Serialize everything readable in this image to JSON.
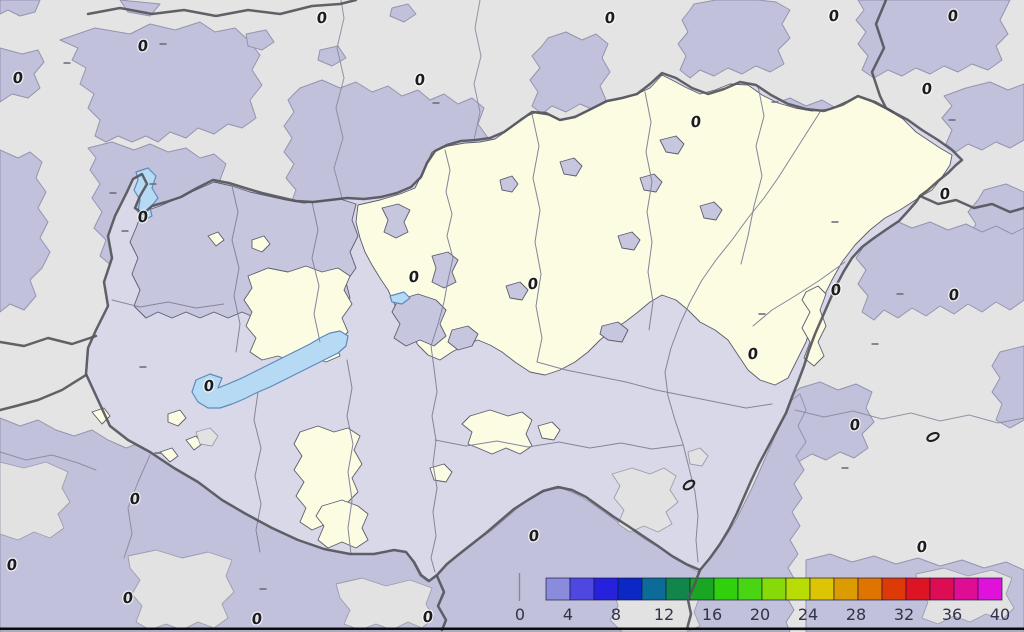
{
  "map": {
    "contour_label": "0",
    "lakes": [
      "balaton",
      "ferto",
      "velence"
    ],
    "colors": {
      "outside_bg": "#e4e4e4",
      "outside_blob": "#c1c1dc",
      "outside_blob_edge": "#9494b0",
      "gray_patch": "#e2e2e2",
      "gray_patch_edge": "#9c9cae",
      "inside_base": "#d8d8e8",
      "inside_blob": "#c6c6df",
      "cream": "#fcfce2",
      "contour_edge": "#5c5c6e",
      "county_line": "#85859a",
      "border_line": "#55555c",
      "lake_fill": "#b7daf4",
      "lake_edge": "#5d89bc",
      "label_color": "#1c1c1c",
      "legend_label": "#32324a",
      "frame_line": "#0b0b0b",
      "legend_tick": "#8a8a8a",
      "cell_edge": "#16163e"
    }
  },
  "legend": {
    "tick_labels": [
      "0",
      "4",
      "8",
      "12",
      "16",
      "20",
      "24",
      "28",
      "32",
      "36",
      "40"
    ],
    "unit_min": 0,
    "unit_max": 40,
    "cell_start_value": 2,
    "cell_step": 2,
    "cell_colors": [
      "#8b8bdc",
      "#4f48e0",
      "#2521dd",
      "#0b28c4",
      "#0d6b9a",
      "#12864a",
      "#1aa523",
      "#30d00d",
      "#4ad512",
      "#86da07",
      "#b9dc05",
      "#dcc505",
      "#dd9b02",
      "#de7500",
      "#dd3a08",
      "#dc1424",
      "#dc0d52",
      "#de0d94",
      "#de12d8"
    ]
  }
}
